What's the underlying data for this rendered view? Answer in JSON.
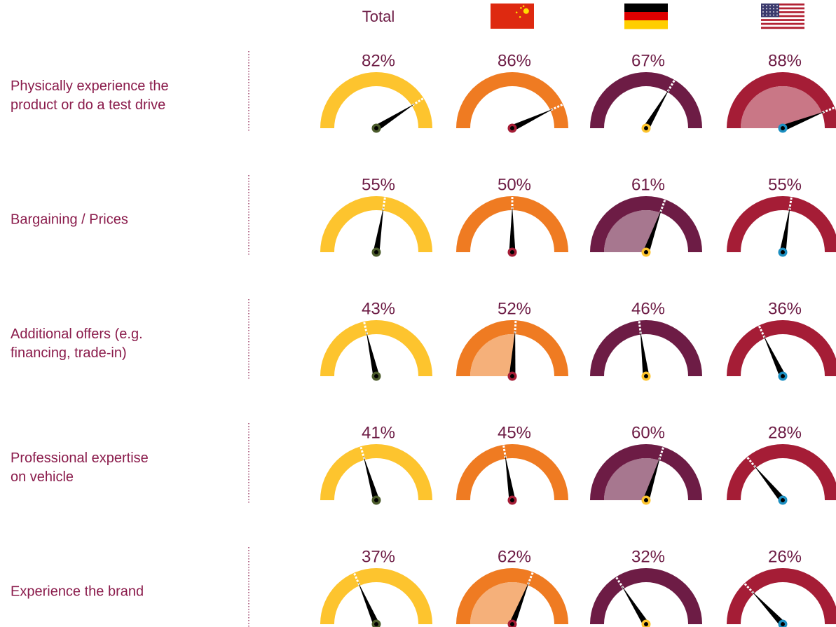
{
  "chart_data": {
    "type": "gauge",
    "categories": [
      [
        "Physically experience the",
        "product or do a test drive"
      ],
      [
        "Bargaining / Prices"
      ],
      [
        "Additional offers (e.g.",
        "financing, trade-in)"
      ],
      [
        "Professional expertise",
        "on vehicle"
      ],
      [
        "Experience the brand"
      ]
    ],
    "ylim": [
      0,
      100
    ],
    "series": [
      {
        "name": "Total",
        "color": "#fdc42e",
        "dot": "#4b5b2b",
        "values": [
          82,
          55,
          43,
          41,
          37
        ],
        "value_labels": [
          "82%",
          "55%",
          "43%",
          "41%",
          "37%"
        ]
      },
      {
        "flag": "china",
        "color": "#ef7b22",
        "dot": "#a51d36",
        "values": [
          86,
          50,
          52,
          45,
          62
        ],
        "value_labels": [
          "86%",
          "50%",
          "52%",
          "45%",
          "62%"
        ]
      },
      {
        "flag": "germany",
        "color": "#6d1c45",
        "dot": "#fdc42e",
        "values": [
          67,
          61,
          46,
          60,
          32
        ],
        "value_labels": [
          "67%",
          "61%",
          "46%",
          "60%",
          "32%"
        ]
      },
      {
        "flag": "usa",
        "color": "#a51d36",
        "dot": "#1c8fc1",
        "values": [
          88,
          55,
          36,
          28,
          26
        ],
        "value_labels": [
          "88%",
          "55%",
          "36%",
          "28%",
          "26%"
        ]
      }
    ]
  }
}
